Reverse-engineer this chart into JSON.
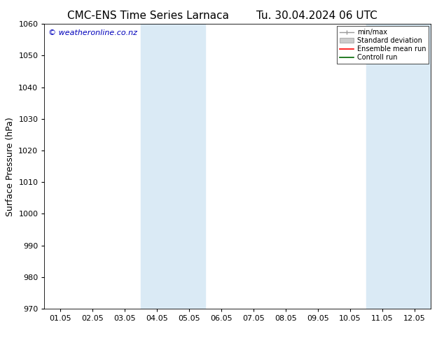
{
  "title_left": "CMC-ENS Time Series Larnaca",
  "title_right": "Tu. 30.04.2024 06 UTC",
  "ylabel": "Surface Pressure (hPa)",
  "ylim": [
    970,
    1060
  ],
  "yticks": [
    970,
    980,
    990,
    1000,
    1010,
    1020,
    1030,
    1040,
    1050,
    1060
  ],
  "xtick_labels": [
    "01.05",
    "02.05",
    "03.05",
    "04.05",
    "05.05",
    "06.05",
    "07.05",
    "08.05",
    "09.05",
    "10.05",
    "11.05",
    "12.05"
  ],
  "num_xticks": 12,
  "shaded_bands": [
    {
      "xmin": 3.0,
      "xmax": 4.0
    },
    {
      "xmin": 4.0,
      "xmax": 5.0
    },
    {
      "xmin": 10.0,
      "xmax": 11.0
    },
    {
      "xmin": 11.0,
      "xmax": 12.0
    }
  ],
  "shade_color": "#daeaf5",
  "background_color": "#ffffff",
  "watermark_text": "© weatheronline.co.nz",
  "watermark_color": "#0000bb",
  "title_fontsize": 11,
  "label_fontsize": 9,
  "tick_fontsize": 8,
  "watermark_fontsize": 8
}
